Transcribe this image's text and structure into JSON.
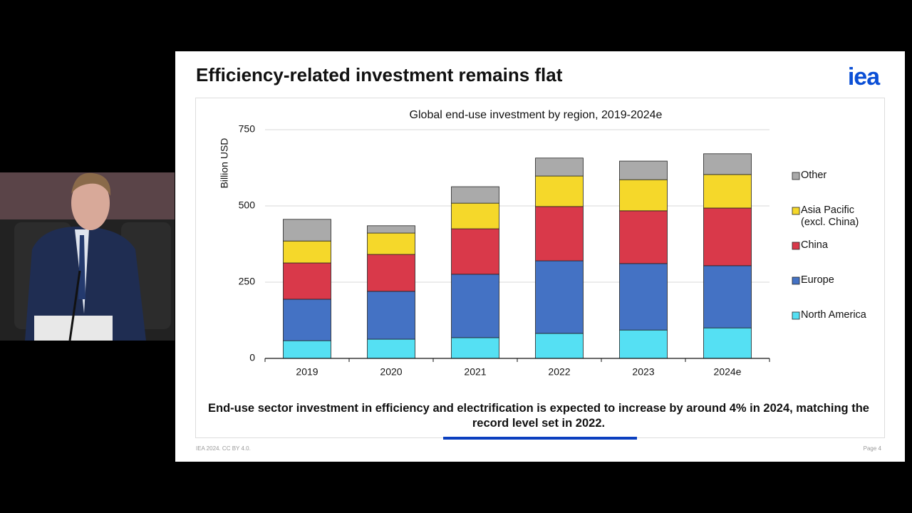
{
  "slide": {
    "title": "Efficiency-related investment remains flat",
    "logo": "iea",
    "caption": "End-use sector investment in efficiency and electrification is expected to increase by around 4% in 2024, matching the record level set in 2022.",
    "footer_left": "IEA 2024. CC BY 4.0.",
    "footer_right": "Page 4"
  },
  "chart_data": {
    "type": "stacked_bar",
    "title": "Global end-use investment by region, 2019-2024e",
    "y_label": "Billion USD",
    "categories": [
      "2019",
      "2020",
      "2021",
      "2022",
      "2023",
      "2024e"
    ],
    "series": [
      {
        "name": "North America",
        "color": "#55e0f3",
        "values": [
          58,
          63,
          68,
          82,
          93,
          100
        ]
      },
      {
        "name": "Europe",
        "color": "#4472c4",
        "values": [
          136,
          157,
          208,
          238,
          218,
          204
        ]
      },
      {
        "name": "China",
        "color": "#d9394a",
        "values": [
          119,
          121,
          149,
          178,
          173,
          189
        ]
      },
      {
        "name": "Asia Pacific (excl. China)",
        "color": "#f5d82a",
        "values": [
          72,
          70,
          84,
          100,
          102,
          110
        ]
      },
      {
        "name": "Other",
        "color": "#aaaaaa",
        "values": [
          71,
          24,
          54,
          59,
          61,
          68
        ]
      }
    ],
    "ylim": [
      0,
      750
    ],
    "yticks": [
      0,
      250,
      500,
      750
    ],
    "grid": true,
    "legend": "right"
  }
}
